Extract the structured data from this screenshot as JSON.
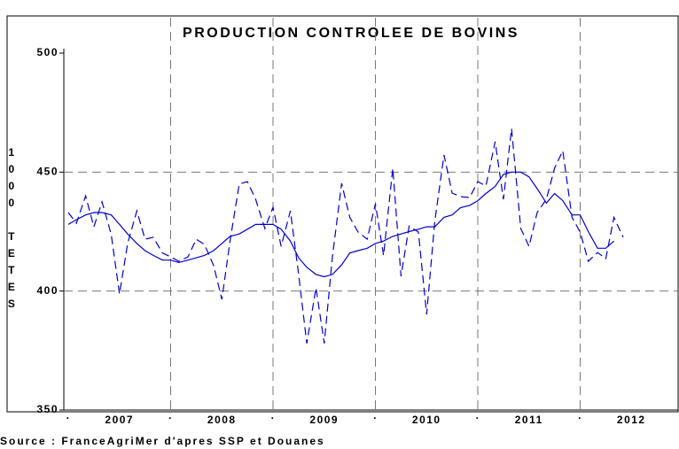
{
  "chart_data": {
    "type": "line",
    "title": "PRODUCTION CONTROLEE DE BOVINS",
    "y_label": "1000 TETES",
    "source": "Source : FranceAgriMer d'apres SSP et Douanes",
    "xlim": [
      2007,
      2013
    ],
    "xticks": [
      {
        "value": 2007,
        "label": "."
      },
      {
        "value": 2008,
        "label": "."
      },
      {
        "value": 2009,
        "label": "."
      },
      {
        "value": 2010,
        "label": "."
      },
      {
        "value": 2011,
        "label": "."
      },
      {
        "value": 2012,
        "label": "."
      }
    ],
    "x_year_labels": [
      {
        "value": 2007.5,
        "label": "2007"
      },
      {
        "value": 2008.5,
        "label": "2008"
      },
      {
        "value": 2009.5,
        "label": "2009"
      },
      {
        "value": 2010.5,
        "label": "2010"
      },
      {
        "value": 2011.5,
        "label": "2011"
      },
      {
        "value": 2012.5,
        "label": "2012"
      }
    ],
    "ylim": [
      350,
      500
    ],
    "yticks": [
      350,
      400,
      450,
      500
    ],
    "grid": true,
    "x": [
      2007.0,
      2007.08,
      2007.17,
      2007.25,
      2007.33,
      2007.42,
      2007.5,
      2007.58,
      2007.67,
      2007.75,
      2007.83,
      2007.92,
      2008.0,
      2008.08,
      2008.17,
      2008.25,
      2008.33,
      2008.42,
      2008.5,
      2008.58,
      2008.67,
      2008.75,
      2008.83,
      2008.92,
      2009.0,
      2009.08,
      2009.17,
      2009.25,
      2009.33,
      2009.42,
      2009.5,
      2009.58,
      2009.67,
      2009.75,
      2009.83,
      2009.92,
      2010.0,
      2010.08,
      2010.17,
      2010.25,
      2010.33,
      2010.42,
      2010.5,
      2010.58,
      2010.67,
      2010.75,
      2010.83,
      2010.92,
      2011.0,
      2011.08,
      2011.17,
      2011.25,
      2011.33,
      2011.42,
      2011.5,
      2011.58,
      2011.67,
      2011.75,
      2011.83,
      2011.92,
      2012.0,
      2012.08,
      2012.17,
      2012.25,
      2012.33,
      2012.42
    ],
    "series": [
      {
        "dash": true,
        "color": "#0000cc",
        "values": [
          433,
          428.5,
          440,
          427,
          437.5,
          423.7,
          398.8,
          420,
          433.7,
          421.8,
          422.6,
          416,
          414.4,
          412.5,
          414.4,
          421.8,
          419.6,
          410.7,
          396.5,
          421,
          445,
          446,
          438.6,
          426.3,
          435.2,
          418.8,
          433.7,
          407,
          378,
          401.4,
          378,
          414.4,
          445.3,
          431,
          424.8,
          421.8,
          436.7,
          415,
          451.6,
          406.2,
          427.4,
          424.8,
          390.2,
          429.3,
          457.2,
          441.2,
          439.7,
          439.3,
          446,
          444.2,
          462.8,
          438.6,
          468.3,
          426.3,
          418.8,
          433,
          438.6,
          451.6,
          459,
          431,
          424.8,
          412.5,
          416.2,
          413.6,
          431,
          422.6
        ]
      },
      {
        "dash": false,
        "color": "#0000cc",
        "values": [
          428,
          430,
          432,
          433,
          433,
          432,
          428,
          424,
          420,
          417,
          415,
          413,
          413,
          412,
          413,
          414,
          415,
          417,
          420,
          423,
          424,
          426,
          428,
          428,
          428,
          426,
          421,
          414,
          410,
          407,
          406,
          407,
          411,
          416,
          417,
          418,
          420,
          421,
          423,
          424,
          425,
          426,
          427,
          427,
          431,
          432,
          435,
          436,
          438,
          441,
          444,
          449,
          450,
          450,
          448,
          443,
          437,
          441,
          438,
          432,
          432,
          425,
          418,
          418,
          421,
          null
        ]
      }
    ]
  }
}
